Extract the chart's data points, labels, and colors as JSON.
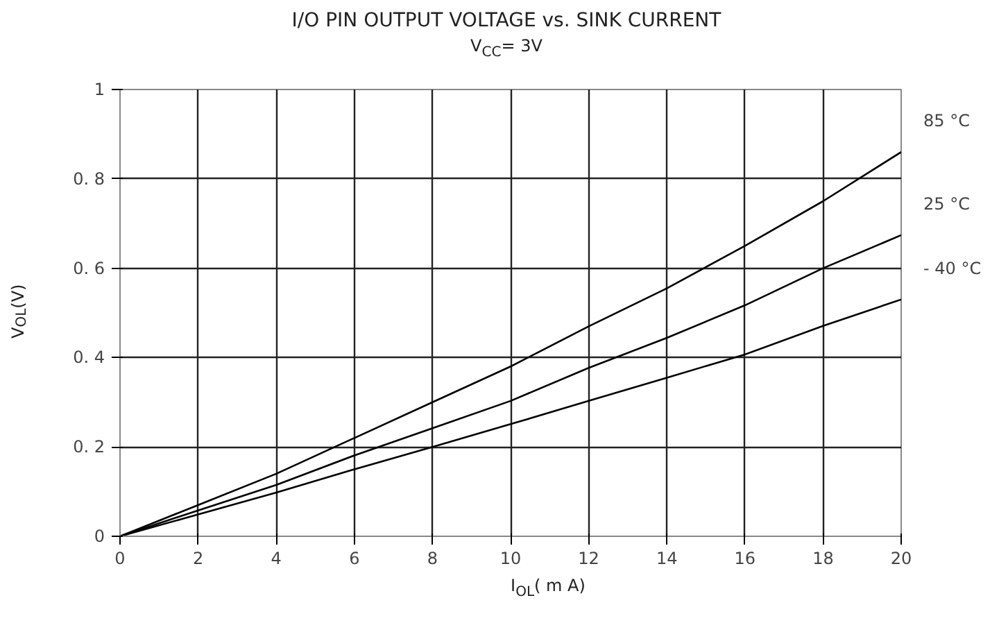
{
  "chart_data": {
    "type": "line",
    "title": "I/O PIN OUTPUT VOLTAGE vs. SINK CURRENT",
    "subtitle": "V$_{CC}$= 3V",
    "xlabel": "I$_{OL}$( m A)",
    "ylabel": "V$_{OL}$(V)",
    "x": [
      0,
      2,
      4,
      6,
      8,
      10,
      12,
      14,
      16,
      18,
      20
    ],
    "series": [
      {
        "name": "85  °C",
        "color": "#000000",
        "values": [
          0,
          0.07,
          0.14,
          0.22,
          0.3,
          0.38,
          0.47,
          0.555,
          0.65,
          0.75,
          0.86
        ]
      },
      {
        "name": "25  °C",
        "color": "#000000",
        "values": [
          0,
          0.058,
          0.115,
          0.181,
          0.242,
          0.303,
          0.377,
          0.444,
          0.517,
          0.6,
          0.674
        ]
      },
      {
        "name": "- 40  °C",
        "color": "#000000",
        "values": [
          0,
          0.049,
          0.098,
          0.15,
          0.2,
          0.251,
          0.303,
          0.355,
          0.407,
          0.471,
          0.53
        ]
      }
    ],
    "xlim": [
      0,
      20
    ],
    "ylim": [
      0,
      1
    ],
    "xticks": [
      0,
      2,
      4,
      6,
      8,
      10,
      12,
      14,
      16,
      18,
      20
    ],
    "yticks": [
      0,
      {
        "value": 0.2,
        "label": "0. 2"
      },
      {
        "value": 0.4,
        "label": "0. 4"
      },
      {
        "value": 0.6,
        "label": "0. 6"
      },
      {
        "value": 0.8,
        "label": "0. 8"
      },
      1
    ],
    "grid": true,
    "marker": "none",
    "line_style": "solid"
  }
}
